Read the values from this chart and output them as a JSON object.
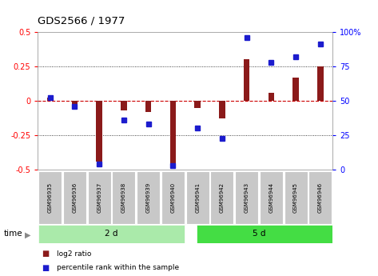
{
  "title": "GDS2566 / 1977",
  "samples": [
    "GSM96935",
    "GSM96936",
    "GSM96937",
    "GSM96938",
    "GSM96939",
    "GSM96940",
    "GSM96941",
    "GSM96942",
    "GSM96943",
    "GSM96944",
    "GSM96945",
    "GSM96946"
  ],
  "log2_ratio": [
    0.02,
    -0.03,
    -0.44,
    -0.07,
    -0.08,
    -0.46,
    -0.05,
    -0.13,
    0.3,
    0.06,
    0.17,
    0.25
  ],
  "pct_rank": [
    52,
    46,
    4,
    36,
    33,
    3,
    30,
    23,
    96,
    78,
    82,
    91
  ],
  "group1_label": "2 d",
  "group2_label": "5 d",
  "group1_count": 6,
  "group2_count": 6,
  "ylim_left": [
    -0.5,
    0.5
  ],
  "ylim_right": [
    0,
    100
  ],
  "yticks_left": [
    -0.5,
    -0.25,
    0.0,
    0.25,
    0.5
  ],
  "ytick_labels_left": [
    "-0.5",
    "-0.25",
    "0",
    "0.25",
    "0.5"
  ],
  "yticks_right": [
    0,
    25,
    50,
    75,
    100
  ],
  "ytick_labels_right": [
    "0",
    "25",
    "50",
    "75",
    "100%"
  ],
  "bar_color": "#8B1A1A",
  "dot_color": "#1C1CCD",
  "group1_bg": "#AAEAAA",
  "group2_bg": "#44DD44",
  "sample_bg": "#C8C8C8",
  "zero_line_color": "#CC0000",
  "grid_color": "#111111",
  "legend_bar_label": "log2 ratio",
  "legend_dot_label": "percentile rank within the sample",
  "bar_width": 0.25,
  "dot_size": 4
}
